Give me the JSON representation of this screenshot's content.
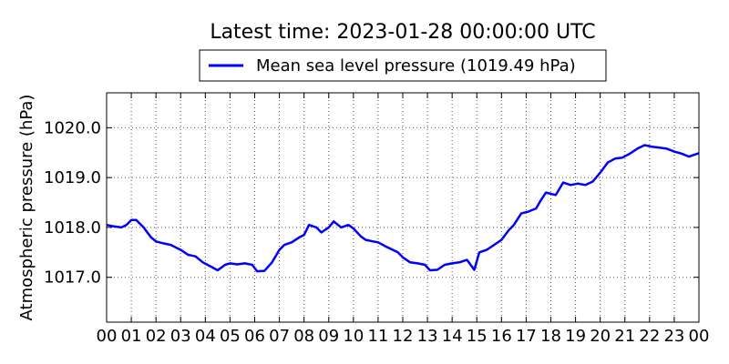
{
  "chart_data": {
    "type": "line",
    "title": "Latest time: 2023-01-28 00:00:00 UTC",
    "xlabel": "",
    "ylabel": "Atmospheric pressure (hPa)",
    "x_ticks": [
      "00",
      "01",
      "02",
      "03",
      "04",
      "05",
      "06",
      "07",
      "08",
      "09",
      "10",
      "11",
      "12",
      "13",
      "14",
      "15",
      "16",
      "17",
      "18",
      "19",
      "20",
      "21",
      "22",
      "23",
      "00"
    ],
    "xlim": [
      0,
      24
    ],
    "y_ticks": [
      "1017.0",
      "1018.0",
      "1019.0",
      "1020.0"
    ],
    "ylim": [
      1016.1,
      1020.7
    ],
    "grid": true,
    "legend_position": "top-center",
    "colors": {
      "series": "#0000ff",
      "grid": "#555555",
      "axis": "#000000"
    },
    "series": [
      {
        "name": "Mean sea level pressure (1019.49 hPa)",
        "points": [
          [
            0.0,
            1018.05
          ],
          [
            0.3,
            1018.02
          ],
          [
            0.6,
            1018.0
          ],
          [
            0.8,
            1018.05
          ],
          [
            1.0,
            1018.15
          ],
          [
            1.2,
            1018.15
          ],
          [
            1.5,
            1018.0
          ],
          [
            1.8,
            1017.8
          ],
          [
            2.0,
            1017.72
          ],
          [
            2.3,
            1017.68
          ],
          [
            2.6,
            1017.65
          ],
          [
            3.0,
            1017.55
          ],
          [
            3.3,
            1017.45
          ],
          [
            3.6,
            1017.42
          ],
          [
            3.9,
            1017.3
          ],
          [
            4.2,
            1017.22
          ],
          [
            4.5,
            1017.14
          ],
          [
            4.8,
            1017.25
          ],
          [
            5.0,
            1017.28
          ],
          [
            5.3,
            1017.26
          ],
          [
            5.6,
            1017.28
          ],
          [
            5.9,
            1017.25
          ],
          [
            6.1,
            1017.12
          ],
          [
            6.4,
            1017.13
          ],
          [
            6.7,
            1017.3
          ],
          [
            7.0,
            1017.55
          ],
          [
            7.2,
            1017.65
          ],
          [
            7.5,
            1017.7
          ],
          [
            7.8,
            1017.8
          ],
          [
            8.0,
            1017.85
          ],
          [
            8.2,
            1018.05
          ],
          [
            8.5,
            1018.0
          ],
          [
            8.7,
            1017.9
          ],
          [
            9.0,
            1018.0
          ],
          [
            9.2,
            1018.12
          ],
          [
            9.5,
            1018.0
          ],
          [
            9.8,
            1018.05
          ],
          [
            10.0,
            1017.98
          ],
          [
            10.3,
            1017.82
          ],
          [
            10.5,
            1017.75
          ],
          [
            10.8,
            1017.72
          ],
          [
            11.0,
            1017.7
          ],
          [
            11.3,
            1017.62
          ],
          [
            11.6,
            1017.55
          ],
          [
            11.8,
            1017.5
          ],
          [
            12.0,
            1017.4
          ],
          [
            12.3,
            1017.3
          ],
          [
            12.6,
            1017.28
          ],
          [
            12.9,
            1017.25
          ],
          [
            13.1,
            1017.14
          ],
          [
            13.4,
            1017.15
          ],
          [
            13.7,
            1017.25
          ],
          [
            14.0,
            1017.28
          ],
          [
            14.3,
            1017.3
          ],
          [
            14.6,
            1017.35
          ],
          [
            14.9,
            1017.15
          ],
          [
            15.1,
            1017.5
          ],
          [
            15.4,
            1017.55
          ],
          [
            15.7,
            1017.65
          ],
          [
            16.0,
            1017.75
          ],
          [
            16.3,
            1017.95
          ],
          [
            16.5,
            1018.05
          ],
          [
            16.8,
            1018.28
          ],
          [
            17.1,
            1018.32
          ],
          [
            17.4,
            1018.38
          ],
          [
            17.6,
            1018.55
          ],
          [
            17.8,
            1018.7
          ],
          [
            18.2,
            1018.65
          ],
          [
            18.5,
            1018.9
          ],
          [
            18.8,
            1018.85
          ],
          [
            19.1,
            1018.88
          ],
          [
            19.4,
            1018.85
          ],
          [
            19.7,
            1018.92
          ],
          [
            20.0,
            1019.1
          ],
          [
            20.3,
            1019.3
          ],
          [
            20.6,
            1019.38
          ],
          [
            20.9,
            1019.4
          ],
          [
            21.2,
            1019.48
          ],
          [
            21.5,
            1019.58
          ],
          [
            21.8,
            1019.65
          ],
          [
            22.1,
            1019.62
          ],
          [
            22.4,
            1019.6
          ],
          [
            22.7,
            1019.58
          ],
          [
            23.0,
            1019.52
          ],
          [
            23.3,
            1019.48
          ],
          [
            23.6,
            1019.42
          ],
          [
            24.0,
            1019.49
          ]
        ]
      }
    ]
  }
}
